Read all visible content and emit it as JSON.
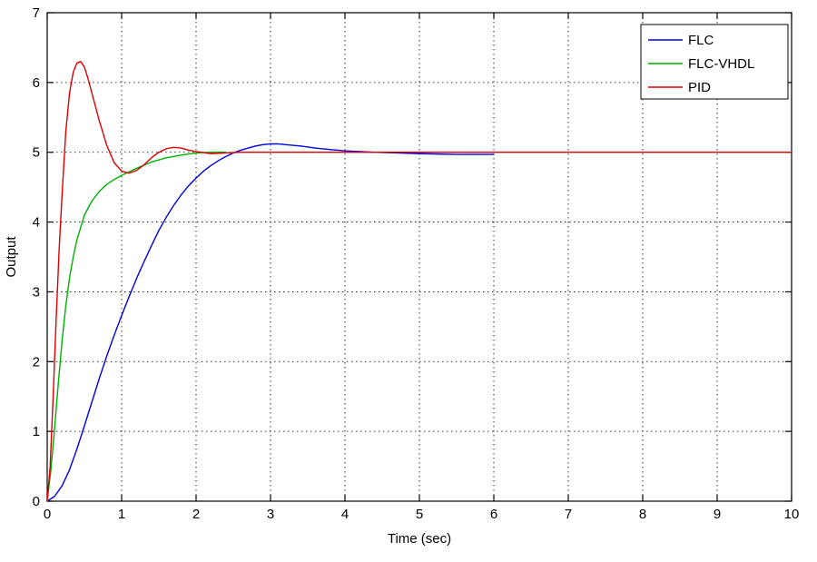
{
  "figure": {
    "background": "#ffffff",
    "axis_color": "#000000",
    "grid_color": "#000000"
  },
  "chart_data": {
    "type": "line",
    "title": "",
    "xlabel": "Time (sec)",
    "ylabel": "Output",
    "xlim": [
      0,
      10
    ],
    "ylim": [
      0,
      7
    ],
    "xticks": [
      0,
      1,
      2,
      3,
      4,
      5,
      6,
      7,
      8,
      9,
      10
    ],
    "yticks": [
      0,
      1,
      2,
      3,
      4,
      5,
      6,
      7
    ],
    "grid": "dotted",
    "legend_position": "top-right",
    "series": [
      {
        "name": "FLC",
        "color": "#0000dd",
        "x": [
          0,
          0.1,
          0.2,
          0.3,
          0.4,
          0.5,
          0.6,
          0.7,
          0.8,
          0.9,
          1.0,
          1.1,
          1.2,
          1.3,
          1.4,
          1.5,
          1.6,
          1.7,
          1.8,
          1.9,
          2.0,
          2.1,
          2.2,
          2.3,
          2.4,
          2.5,
          2.6,
          2.7,
          2.8,
          2.9,
          3.0,
          3.1,
          3.2,
          3.4,
          3.6,
          3.8,
          4.0,
          4.2,
          4.4,
          4.7,
          5.0,
          5.5,
          6.0
        ],
        "y": [
          0,
          0.07,
          0.22,
          0.45,
          0.75,
          1.08,
          1.42,
          1.76,
          2.08,
          2.38,
          2.66,
          2.93,
          3.19,
          3.43,
          3.66,
          3.88,
          4.07,
          4.24,
          4.39,
          4.52,
          4.63,
          4.73,
          4.81,
          4.88,
          4.94,
          4.99,
          5.03,
          5.06,
          5.09,
          5.11,
          5.12,
          5.12,
          5.11,
          5.09,
          5.06,
          5.04,
          5.02,
          5.01,
          5.0,
          4.99,
          4.98,
          4.97,
          4.97
        ]
      },
      {
        "name": "FLC-VHDL",
        "color": "#00b000",
        "x": [
          0,
          0.05,
          0.1,
          0.15,
          0.2,
          0.25,
          0.3,
          0.35,
          0.4,
          0.5,
          0.6,
          0.7,
          0.8,
          0.9,
          1.0,
          1.1,
          1.2,
          1.4,
          1.6,
          1.8,
          2.0,
          2.2,
          2.4
        ],
        "y": [
          0,
          0.45,
          1.05,
          1.7,
          2.3,
          2.8,
          3.2,
          3.5,
          3.75,
          4.1,
          4.3,
          4.44,
          4.54,
          4.61,
          4.67,
          4.72,
          4.77,
          4.86,
          4.92,
          4.96,
          4.99,
          5.0,
          5.0
        ]
      },
      {
        "name": "PID",
        "color": "#dd0000",
        "x": [
          0,
          0.04,
          0.08,
          0.12,
          0.16,
          0.2,
          0.25,
          0.3,
          0.35,
          0.4,
          0.45,
          0.5,
          0.55,
          0.6,
          0.7,
          0.8,
          0.9,
          1.0,
          1.1,
          1.2,
          1.3,
          1.4,
          1.5,
          1.6,
          1.7,
          1.8,
          1.9,
          2.0,
          2.2,
          2.4,
          2.6,
          3.0,
          4.0,
          5.0,
          6.0,
          7.0,
          8.0,
          9.0,
          10.0
        ],
        "y": [
          0,
          0.5,
          1.5,
          2.6,
          3.6,
          4.4,
          5.3,
          5.85,
          6.15,
          6.28,
          6.3,
          6.22,
          6.05,
          5.85,
          5.45,
          5.1,
          4.85,
          4.73,
          4.7,
          4.74,
          4.82,
          4.92,
          5.0,
          5.05,
          5.07,
          5.06,
          5.03,
          5.01,
          4.98,
          4.99,
          5.0,
          5.0,
          5.0,
          5.0,
          5.0,
          5.0,
          5.0,
          5.0,
          5.0
        ]
      }
    ],
    "legend": [
      "FLC",
      "FLC-VHDL",
      "PID"
    ]
  }
}
